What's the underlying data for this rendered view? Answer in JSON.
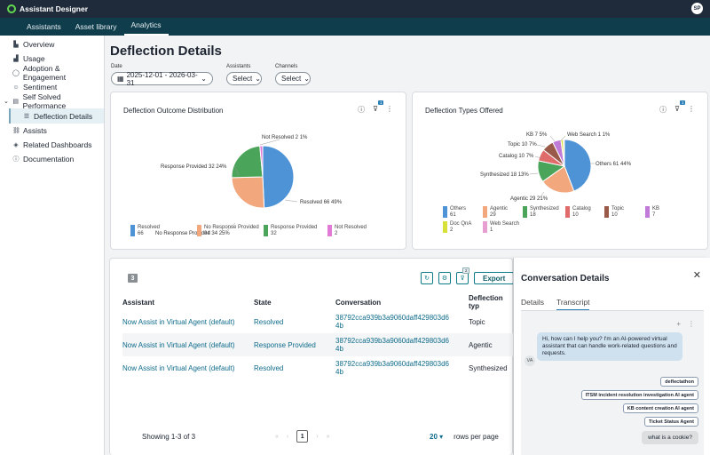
{
  "app": {
    "title": "Assistant Designer",
    "avatar": "SP"
  },
  "nav": {
    "tabs": [
      "Assistants",
      "Asset library",
      "Analytics"
    ],
    "active": 2
  },
  "sidebar": {
    "items": [
      {
        "label": "Overview",
        "icon": "bar-chart-icon"
      },
      {
        "label": "Usage",
        "icon": "chart-icon"
      },
      {
        "label": "Adoption & Engagement",
        "icon": "chat-icon"
      },
      {
        "label": "Sentiment",
        "icon": "smile-icon"
      },
      {
        "label": "Self Solved Performance",
        "icon": "clipboard-icon"
      },
      {
        "label": "Deflection Details",
        "icon": "list-icon"
      },
      {
        "label": "Assists",
        "icon": "link-icon"
      },
      {
        "label": "Related Dashboards",
        "icon": "stack-icon"
      },
      {
        "label": "Documentation",
        "icon": "help-icon"
      }
    ]
  },
  "page": {
    "title": "Deflection Details"
  },
  "filters": {
    "date_label": "Date",
    "date_value": "2025-12-01 - 2026-03-31",
    "assistants_label": "Assistants",
    "assistants_value": "Select",
    "channels_label": "Channels",
    "channels_value": "Select"
  },
  "outcome_chart": {
    "title": "Deflection Outcome Distribution",
    "filter_badge": "1",
    "legend": [
      {
        "label": "Resolved",
        "value": "66"
      },
      {
        "label": "No Response Provided",
        "value": "34"
      },
      {
        "label": "Response Provided",
        "value": "32"
      },
      {
        "label": "Not Resolved",
        "value": "2"
      }
    ],
    "labels": {
      "resolved": "Resolved  66  49%",
      "no_response": "No Response Provided  34  25%",
      "response": "Response Provided  32  24%",
      "not_resolved": "Not Resolved  2  1%"
    }
  },
  "types_chart": {
    "title": "Deflection Types Offered",
    "filter_badge": "1",
    "legend": [
      {
        "label": "Others",
        "value": "61"
      },
      {
        "label": "Agentic",
        "value": "29"
      },
      {
        "label": "Synthesized",
        "value": "18"
      },
      {
        "label": "Catalog",
        "value": "10"
      },
      {
        "label": "Topic",
        "value": "10"
      },
      {
        "label": "KB",
        "value": "7"
      },
      {
        "label": "Doc QnA",
        "value": "2"
      },
      {
        "label": "Web Search",
        "value": "1"
      }
    ],
    "labels": {
      "others": "Others  61  44%",
      "agentic": "Agentic  29  21%",
      "synthesized": "Synthesized  18  13%",
      "catalog": "Catalog  10  7%",
      "topic": "Topic  10  7%",
      "kb": "KB  7  5%",
      "web": "Web Search  1  1%"
    }
  },
  "chart_data": [
    {
      "type": "pie",
      "title": "Deflection Outcome Distribution",
      "categories": [
        "Resolved",
        "No Response Provided",
        "Response Provided",
        "Not Resolved"
      ],
      "values": [
        66,
        34,
        32,
        2
      ],
      "colors": [
        "#4e93d6",
        "#f2a77c",
        "#4aa45a",
        "#e27bd8"
      ],
      "legend": "bottom"
    },
    {
      "type": "pie",
      "title": "Deflection Types Offered",
      "categories": [
        "Others",
        "Agentic",
        "Synthesized",
        "Catalog",
        "Topic",
        "KB",
        "Doc QnA",
        "Web Search"
      ],
      "values": [
        61,
        29,
        18,
        10,
        10,
        7,
        2,
        1
      ],
      "colors": [
        "#4e93d6",
        "#f2a77c",
        "#4aa45a",
        "#e06b6b",
        "#9a5a4a",
        "#c07ad8",
        "#d8e03a",
        "#e79ed1"
      ],
      "legend": "bottom"
    }
  ],
  "table": {
    "count": "3",
    "filter_badge": "2",
    "export_label": "Export",
    "columns": [
      "Assistant",
      "State",
      "Conversation",
      "Deflection typ"
    ],
    "rows": [
      {
        "assistant": "Now Assist in Virtual Agent (default)",
        "state": "Resolved",
        "conv1": "38792cca939b3a9060daff429803d6",
        "conv2": "4b",
        "type": "Topic"
      },
      {
        "assistant": "Now Assist in Virtual Agent (default)",
        "state": "Response Provided",
        "conv1": "38792cca939b3a9060daff429803d6",
        "conv2": "4b",
        "type": "Agentic"
      },
      {
        "assistant": "Now Assist in Virtual Agent (default)",
        "state": "Resolved",
        "conv1": "38792cca939b3a9060daff429803d6",
        "conv2": "4b",
        "type": "Synthesized"
      }
    ],
    "showing": "Showing 1-3 of 3",
    "page": "1",
    "rows_per_page": "20",
    "rows_per_page_label": "rows per page"
  },
  "conversation": {
    "title": "Conversation Details",
    "tabs": [
      "Details",
      "Transcript"
    ],
    "active_tab": 1,
    "avatar": "VA",
    "bot_message": "Hi, how can I help you? I'm an AI-powered virtual assistant that can handle work-related questions and requests.",
    "chips": [
      "deflectathon",
      "ITSM incident resolution investigation AI agent",
      "KB content creation AI agent",
      "Ticket Status Agent"
    ],
    "user_message": "what is a cookie?"
  }
}
